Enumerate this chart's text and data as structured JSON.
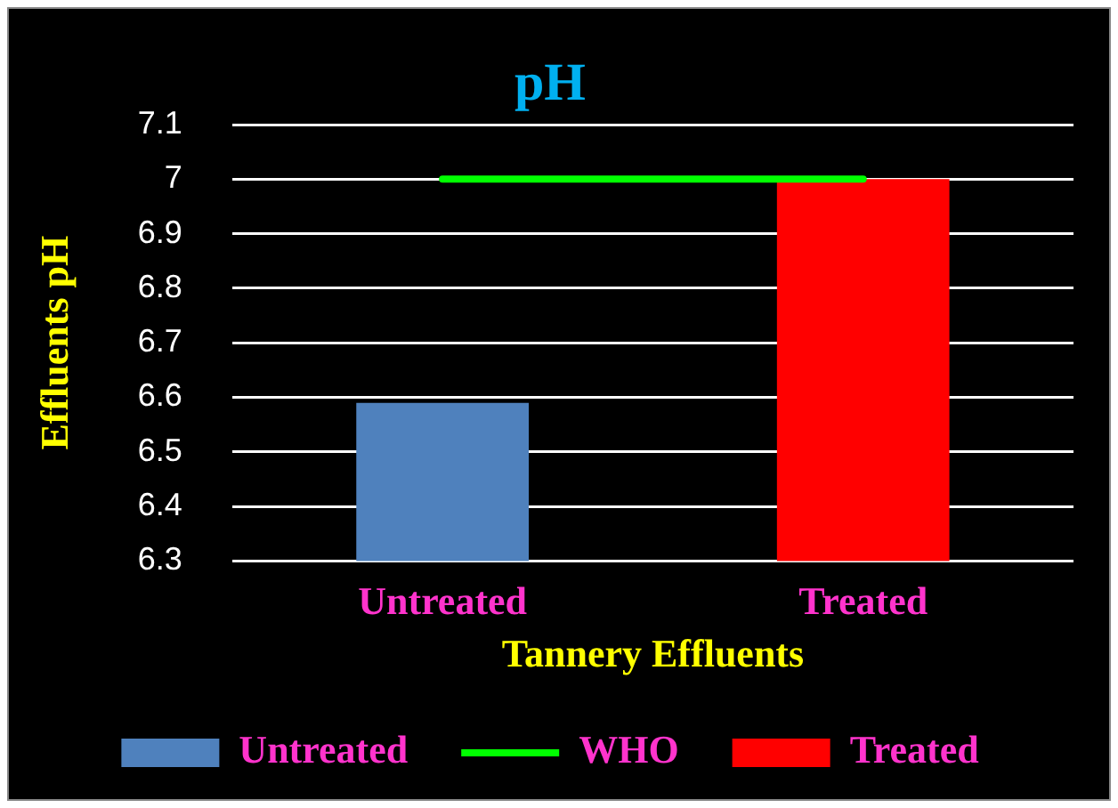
{
  "chart_data": {
    "type": "bar",
    "title": "pH",
    "xlabel": "Tannery Effluents",
    "ylabel": "Effluents pH",
    "categories": [
      "Untreated",
      "Treated"
    ],
    "series": [
      {
        "name": "Untreated",
        "color": "#4f81bd",
        "values": [
          6.59,
          null
        ]
      },
      {
        "name": "WHO",
        "type": "line",
        "color": "#00ff00",
        "values": [
          7,
          7
        ]
      },
      {
        "name": "Treated",
        "color": "#ff0000",
        "values": [
          null,
          7.0
        ]
      }
    ],
    "ylim": [
      6.3,
      7.1
    ],
    "yticks": [
      6.3,
      6.4,
      6.5,
      6.6,
      6.7,
      6.8,
      6.9,
      7,
      7.1
    ],
    "grid": "y",
    "legend": "bottom",
    "marker": "none"
  }
}
